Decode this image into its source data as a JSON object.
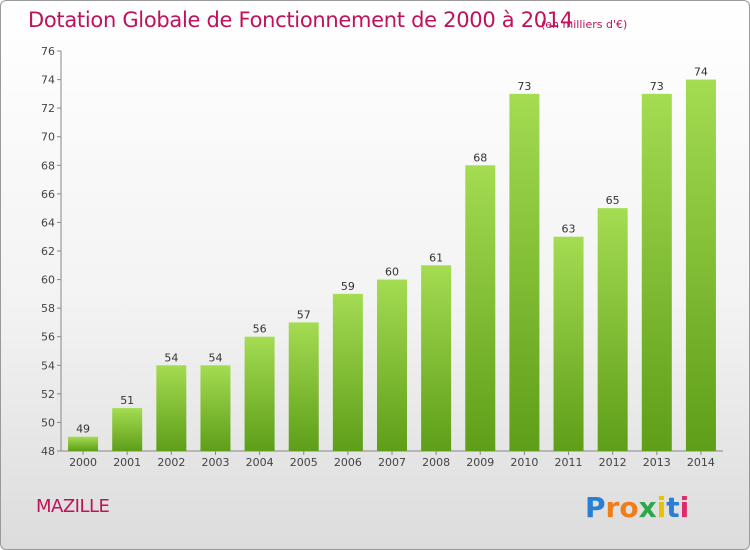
{
  "title": "Dotation Globale de Fonctionnement de 2000 à 2014",
  "unit_note": "(en milliers d'€)",
  "commune": "MAZILLE",
  "logo": {
    "letters": [
      "P",
      "r",
      "o",
      "x",
      "i",
      "t",
      "i"
    ],
    "colors": [
      "#2a7fd4",
      "#f07d1a",
      "#f07d1a",
      "#2aa84a",
      "#e8c200",
      "#2a7fd4",
      "#e02a6a"
    ]
  },
  "colors": {
    "bar_light": "#a4dc52",
    "bar_dark": "#5e9e18",
    "title": "#c0125a"
  },
  "chart_data": {
    "type": "bar",
    "title": "Dotation Globale de Fonctionnement de 2000 à 2014",
    "xlabel": "",
    "ylabel": "",
    "categories": [
      "2000",
      "2001",
      "2002",
      "2003",
      "2004",
      "2005",
      "2006",
      "2007",
      "2008",
      "2009",
      "2010",
      "2011",
      "2012",
      "2013",
      "2014"
    ],
    "values": [
      49,
      51,
      54,
      54,
      56,
      57,
      59,
      60,
      61,
      68,
      73,
      63,
      65,
      73,
      74
    ],
    "ylim": [
      48,
      76
    ],
    "yticks": [
      48,
      50,
      52,
      54,
      56,
      58,
      60,
      62,
      64,
      66,
      68,
      70,
      72,
      74,
      76
    ],
    "grid": false,
    "legend": "none"
  }
}
